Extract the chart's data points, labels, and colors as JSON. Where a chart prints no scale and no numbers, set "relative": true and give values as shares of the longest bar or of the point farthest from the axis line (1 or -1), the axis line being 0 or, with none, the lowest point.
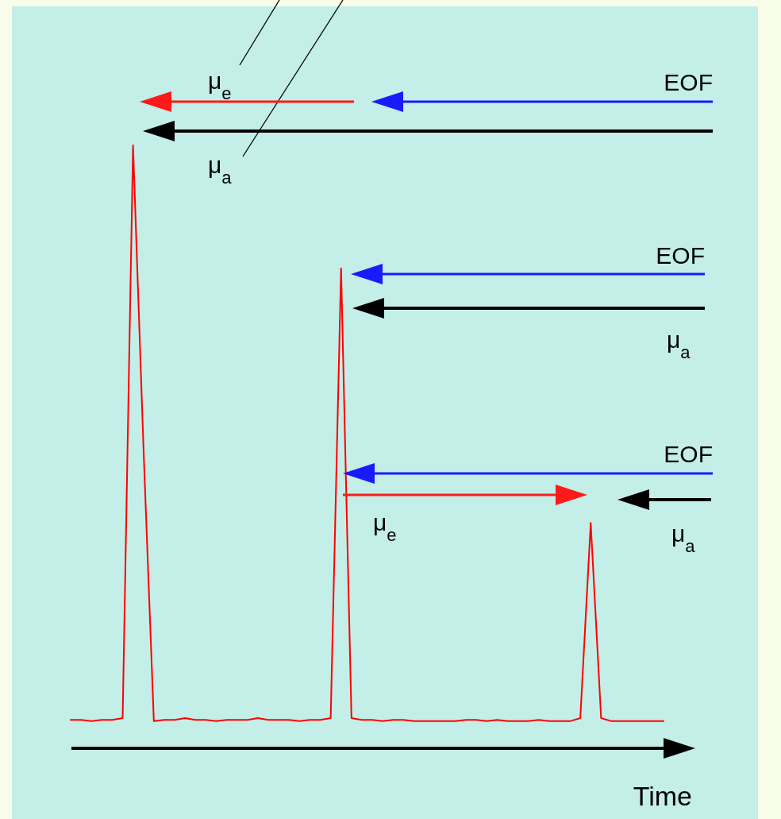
{
  "chart_data": {
    "type": "line",
    "relative": true,
    "xlabel": "Time",
    "categories": [
      null,
      null,
      null,
      null,
      null,
      null,
      null,
      null,
      null,
      null,
      null,
      null,
      null,
      null,
      null,
      null,
      null,
      null,
      null,
      null,
      null,
      null,
      null,
      null,
      null,
      null,
      null,
      null,
      null,
      null,
      null,
      null,
      null,
      null,
      null,
      null,
      null,
      null,
      null,
      null,
      null,
      null,
      null,
      null,
      null,
      null,
      null,
      null,
      null,
      null,
      null,
      null,
      null,
      null,
      null,
      null,
      null,
      null
    ],
    "series": [
      {
        "color": "#ff0000",
        "values": [
          0.047,
          0.047,
          0.045,
          0.047,
          0.047,
          0.05,
          1,
          0.5,
          0.045,
          0.047,
          0.047,
          0.05,
          0.047,
          0.047,
          0.045,
          0.047,
          0.047,
          0.047,
          0.05,
          0.047,
          0.047,
          0.047,
          0.045,
          0.047,
          0.047,
          0.05,
          0.796,
          0.05,
          0.047,
          0.047,
          0.045,
          0.047,
          0.047,
          0.045,
          0.045,
          0.045,
          0.045,
          0.045,
          0.047,
          0.047,
          0.045,
          0.047,
          0.045,
          0.045,
          0.045,
          0.047,
          0.045,
          0.045,
          0.045,
          0.05,
          0.374,
          0.05,
          0.045,
          0.045,
          0.045,
          0.045,
          0.045,
          0.045
        ]
      }
    ],
    "annotations": [
      "μ$_{e}$",
      "EOF",
      "μ$_{a}$",
      "EOF",
      "μ$_{a}$",
      "EOF",
      "μ$_{e}$",
      "μ$_{a}$"
    ],
    "grid": false,
    "marker": "none",
    "line_style": "solid"
  }
}
